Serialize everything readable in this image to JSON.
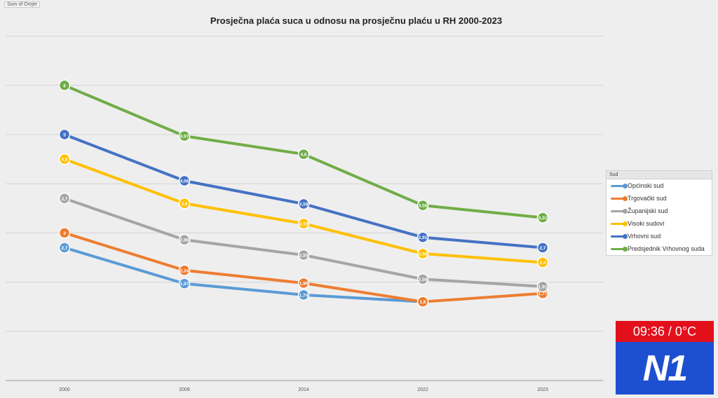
{
  "corner_label": "Sum of Omjer",
  "chart_data": {
    "type": "line",
    "title": "Prosječna plaća suca u odnosu na prosječnu plaću u RH 2000-2023",
    "categories": [
      "2000",
      "2009",
      "2014",
      "2022",
      "2023"
    ],
    "ylim": [
      0,
      7
    ],
    "grid": true,
    "legend_title": "Sud",
    "legend_position": "right",
    "series": [
      {
        "name": "Općinski sud",
        "color": "#5b9bd5",
        "values": [
          2.7,
          1.97,
          1.74,
          1.6,
          null
        ],
        "labels": [
          "2,7",
          "1,97",
          "1,74",
          "1,6",
          ""
        ]
      },
      {
        "name": "Trgovački sud",
        "color": "#ed7d31",
        "values": [
          3,
          2.24,
          1.98,
          1.6,
          1.77
        ],
        "labels": [
          "3",
          "2,24",
          "1,98",
          "1,6",
          "1,77"
        ]
      },
      {
        "name": "Županijski sud",
        "color": "#a5a5a5",
        "values": [
          3.7,
          2.86,
          2.55,
          2.06,
          1.91
        ],
        "labels": [
          "3,7",
          "2,86",
          "2,55",
          "2,06",
          "1,91"
        ]
      },
      {
        "name": "Visoki sudovi",
        "color": "#ffc000",
        "values": [
          4.5,
          3.6,
          3.19,
          2.58,
          2.4
        ],
        "labels": [
          "4,5",
          "3,6",
          "3,19",
          "2,58",
          "2,4"
        ]
      },
      {
        "name": "Vrhovni sud",
        "color": "#4472c4",
        "values": [
          5,
          4.06,
          3.59,
          2.91,
          2.7
        ],
        "labels": [
          "5",
          "4,06",
          "3,59",
          "2,91",
          "2,7"
        ]
      },
      {
        "name": "Predsjednik Vrhovnog suda",
        "color": "#70ad47",
        "values": [
          6,
          4.97,
          4.6,
          3.56,
          3.31
        ],
        "labels": [
          "6",
          "4,97",
          "4,6",
          "3,56",
          "3,31"
        ]
      }
    ]
  },
  "overlay": {
    "clock_text": "09:36 / 0°C",
    "logo_text": "N1",
    "clock_bg": "#e3101c",
    "logo_bg": "#1d4fd1"
  }
}
